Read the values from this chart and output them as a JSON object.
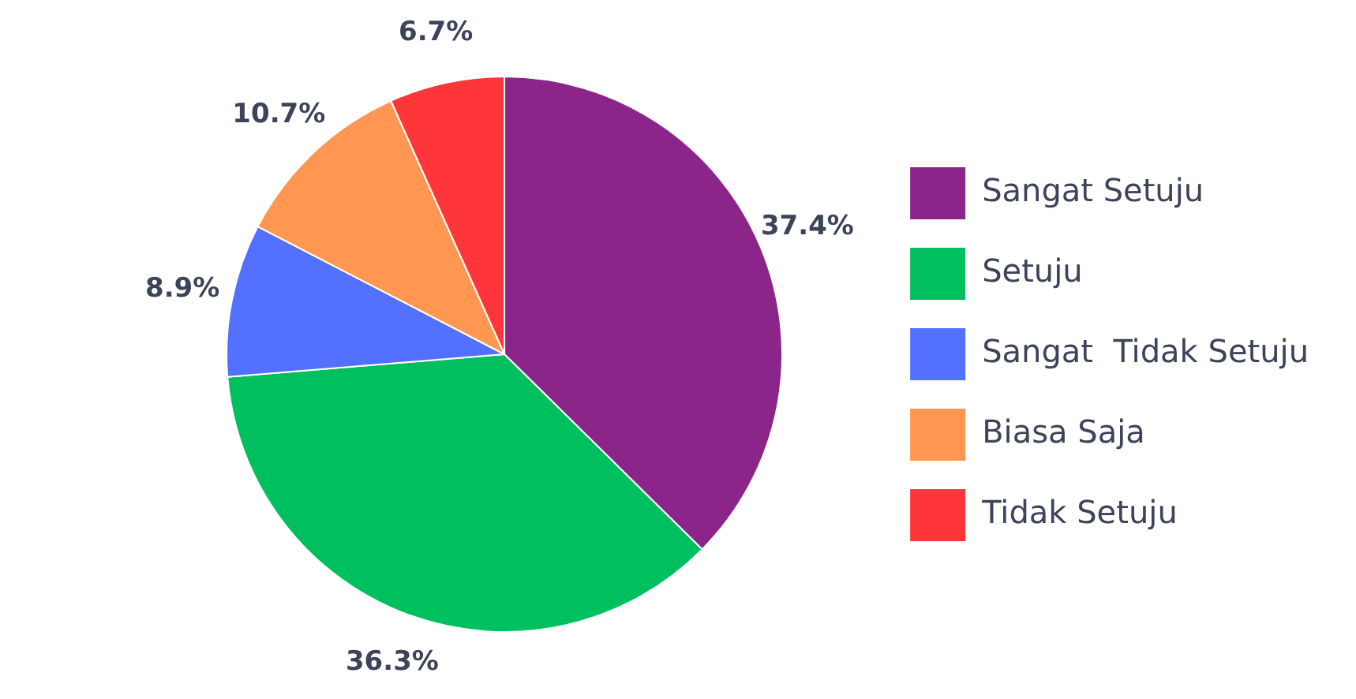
{
  "chart_data": {
    "type": "pie",
    "categories": [
      "Sangat Setuju",
      "Setuju",
      "Sangat  Tidak Setuju",
      "Biasa Saja",
      "Tidak Setuju"
    ],
    "values": [
      37.4,
      36.3,
      8.9,
      10.7,
      6.7
    ],
    "colors": [
      "#8b2589",
      "#00bf5f",
      "#5470fe",
      "#ff9651",
      "#ff3639"
    ],
    "value_labels": [
      "37.4%",
      "36.3%",
      "8.9%",
      "10.7%",
      "6.7%"
    ],
    "legend": "right"
  }
}
